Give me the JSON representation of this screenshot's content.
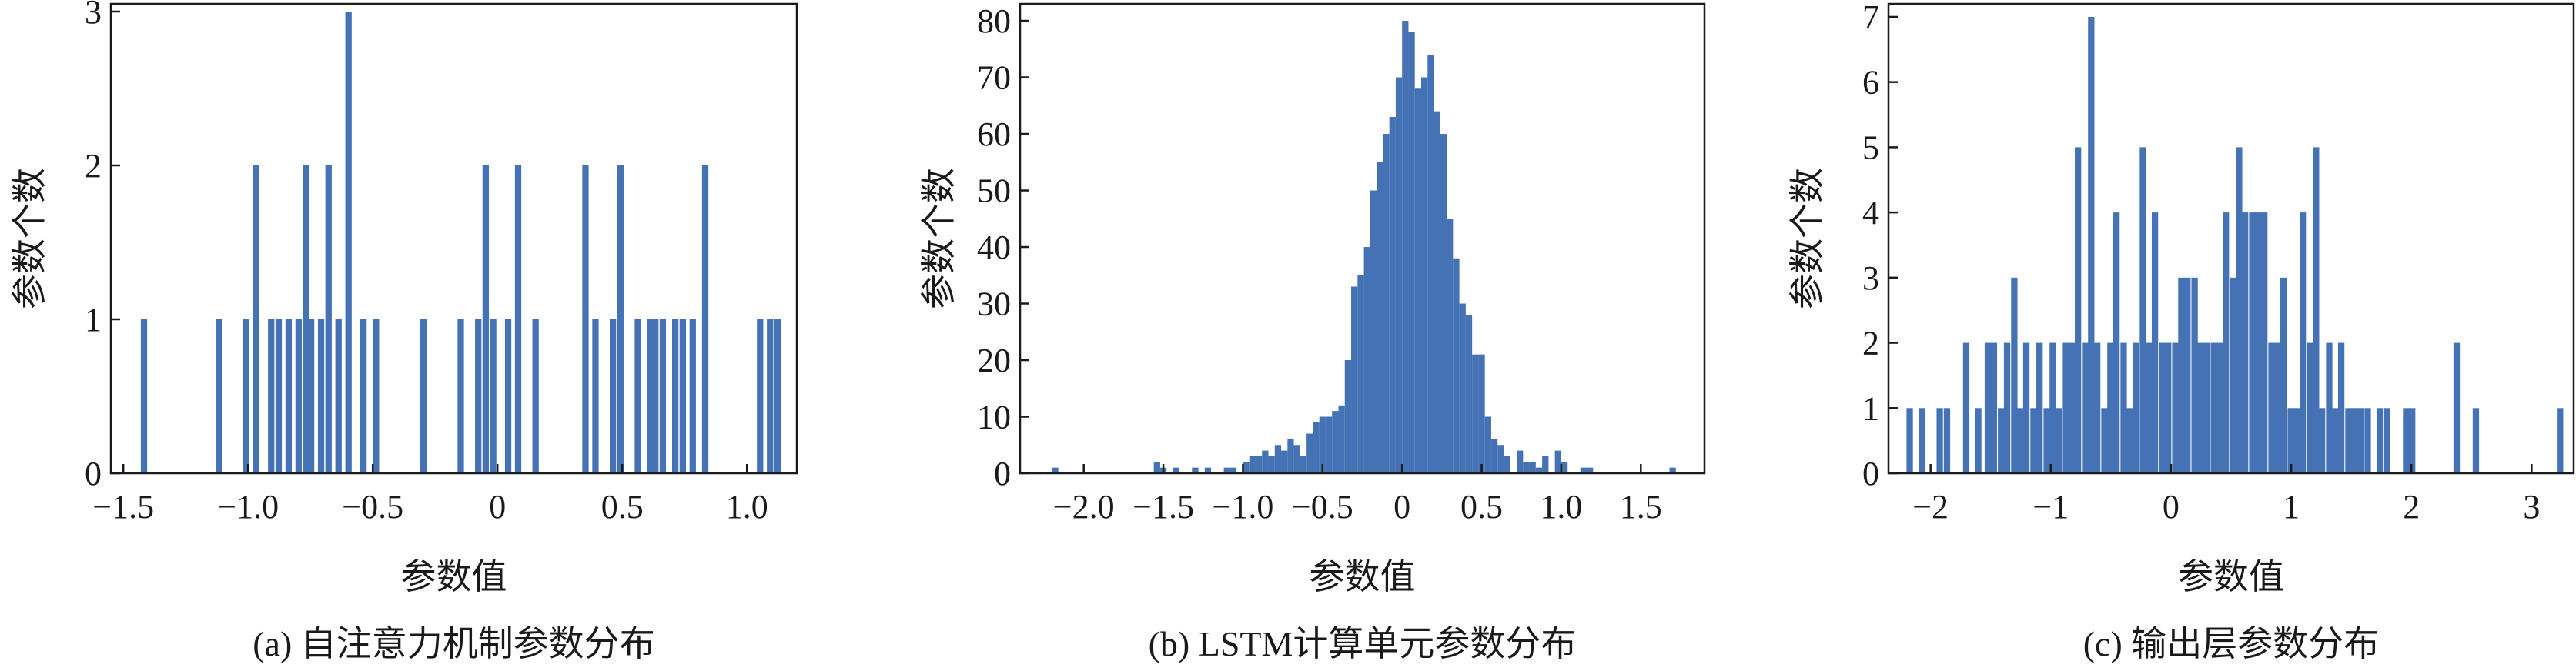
{
  "chart_data": [
    {
      "type": "bar",
      "caption": "(a) 自注意力机制参数分布",
      "xlabel": "参数值",
      "ylabel": "参数个数",
      "xlim": [
        -1.55,
        1.2
      ],
      "ylim": [
        0,
        3.05
      ],
      "xticks": [
        -1.5,
        -1.0,
        -0.5,
        0.0,
        0.5,
        1.0
      ],
      "xtick_labels": [
        "−1.5",
        "−1.0",
        "−0.5",
        "0",
        "0.5",
        "1.0"
      ],
      "yticks": [
        0,
        1,
        2,
        3
      ],
      "ytick_labels": [
        "0",
        "1",
        "2",
        "3"
      ],
      "bin_width": 0.0255,
      "color": "#4472b4",
      "bins": [
        {
          "x": -1.43,
          "count": 1
        },
        {
          "x": -1.13,
          "count": 1
        },
        {
          "x": -1.02,
          "count": 1
        },
        {
          "x": -0.98,
          "count": 2
        },
        {
          "x": -0.92,
          "count": 1
        },
        {
          "x": -0.89,
          "count": 1
        },
        {
          "x": -0.85,
          "count": 1
        },
        {
          "x": -0.81,
          "count": 1
        },
        {
          "x": -0.78,
          "count": 2
        },
        {
          "x": -0.76,
          "count": 1
        },
        {
          "x": -0.72,
          "count": 1
        },
        {
          "x": -0.69,
          "count": 2
        },
        {
          "x": -0.65,
          "count": 1
        },
        {
          "x": -0.61,
          "count": 3
        },
        {
          "x": -0.55,
          "count": 1
        },
        {
          "x": -0.5,
          "count": 1
        },
        {
          "x": -0.31,
          "count": 1
        },
        {
          "x": -0.16,
          "count": 1
        },
        {
          "x": -0.09,
          "count": 1
        },
        {
          "x": -0.06,
          "count": 2
        },
        {
          "x": -0.03,
          "count": 1
        },
        {
          "x": 0.03,
          "count": 1
        },
        {
          "x": 0.07,
          "count": 2
        },
        {
          "x": 0.14,
          "count": 1
        },
        {
          "x": 0.34,
          "count": 2
        },
        {
          "x": 0.38,
          "count": 1
        },
        {
          "x": 0.45,
          "count": 1
        },
        {
          "x": 0.48,
          "count": 2
        },
        {
          "x": 0.55,
          "count": 1
        },
        {
          "x": 0.6,
          "count": 1
        },
        {
          "x": 0.62,
          "count": 1
        },
        {
          "x": 0.65,
          "count": 1
        },
        {
          "x": 0.7,
          "count": 1
        },
        {
          "x": 0.73,
          "count": 1
        },
        {
          "x": 0.77,
          "count": 1
        },
        {
          "x": 0.82,
          "count": 2
        },
        {
          "x": 1.04,
          "count": 1
        },
        {
          "x": 1.08,
          "count": 1
        },
        {
          "x": 1.11,
          "count": 1
        }
      ]
    },
    {
      "type": "bar",
      "caption": "(b) LSTM计算单元参数分布",
      "xlabel": "参数值",
      "ylabel": "参数个数",
      "xlim": [
        -2.4,
        1.9
      ],
      "ylim": [
        0,
        83
      ],
      "xticks": [
        -2.0,
        -1.5,
        -1.0,
        -0.5,
        0.0,
        0.5,
        1.0,
        1.5
      ],
      "xtick_labels": [
        "−2.0",
        "−1.5",
        "−1.0",
        "−0.5",
        "0",
        "0.5",
        "1.0",
        "1.5"
      ],
      "yticks": [
        0,
        10,
        20,
        30,
        40,
        50,
        60,
        70,
        80
      ],
      "ytick_labels": [
        "0",
        "10",
        "20",
        "30",
        "40",
        "50",
        "60",
        "70",
        "80"
      ],
      "bin_width": 0.04,
      "color": "#4472b4",
      "bins": [
        {
          "x": -2.2,
          "count": 1
        },
        {
          "x": -1.56,
          "count": 2
        },
        {
          "x": -1.52,
          "count": 1
        },
        {
          "x": -1.44,
          "count": 1
        },
        {
          "x": -1.32,
          "count": 1
        },
        {
          "x": -1.24,
          "count": 1
        },
        {
          "x": -1.12,
          "count": 1
        },
        {
          "x": -1.08,
          "count": 1
        },
        {
          "x": -1.0,
          "count": 2
        },
        {
          "x": -0.96,
          "count": 3
        },
        {
          "x": -0.92,
          "count": 3
        },
        {
          "x": -0.88,
          "count": 4
        },
        {
          "x": -0.84,
          "count": 3
        },
        {
          "x": -0.8,
          "count": 5
        },
        {
          "x": -0.76,
          "count": 4
        },
        {
          "x": -0.72,
          "count": 6
        },
        {
          "x": -0.68,
          "count": 5
        },
        {
          "x": -0.64,
          "count": 3
        },
        {
          "x": -0.6,
          "count": 7
        },
        {
          "x": -0.56,
          "count": 9
        },
        {
          "x": -0.52,
          "count": 10
        },
        {
          "x": -0.48,
          "count": 10
        },
        {
          "x": -0.44,
          "count": 11
        },
        {
          "x": -0.4,
          "count": 12
        },
        {
          "x": -0.36,
          "count": 20
        },
        {
          "x": -0.32,
          "count": 33
        },
        {
          "x": -0.28,
          "count": 35
        },
        {
          "x": -0.24,
          "count": 40
        },
        {
          "x": -0.2,
          "count": 50
        },
        {
          "x": -0.16,
          "count": 55
        },
        {
          "x": -0.12,
          "count": 60
        },
        {
          "x": -0.08,
          "count": 63
        },
        {
          "x": -0.04,
          "count": 70
        },
        {
          "x": 0.0,
          "count": 80
        },
        {
          "x": 0.04,
          "count": 78
        },
        {
          "x": 0.08,
          "count": 68
        },
        {
          "x": 0.12,
          "count": 70
        },
        {
          "x": 0.16,
          "count": 74
        },
        {
          "x": 0.2,
          "count": 64
        },
        {
          "x": 0.24,
          "count": 60
        },
        {
          "x": 0.28,
          "count": 45
        },
        {
          "x": 0.32,
          "count": 38
        },
        {
          "x": 0.36,
          "count": 30
        },
        {
          "x": 0.4,
          "count": 28
        },
        {
          "x": 0.44,
          "count": 21
        },
        {
          "x": 0.48,
          "count": 21
        },
        {
          "x": 0.52,
          "count": 10
        },
        {
          "x": 0.56,
          "count": 6
        },
        {
          "x": 0.6,
          "count": 5
        },
        {
          "x": 0.64,
          "count": 3
        },
        {
          "x": 0.72,
          "count": 4
        },
        {
          "x": 0.76,
          "count": 2
        },
        {
          "x": 0.8,
          "count": 2
        },
        {
          "x": 0.84,
          "count": 1
        },
        {
          "x": 0.88,
          "count": 3
        },
        {
          "x": 0.96,
          "count": 4
        },
        {
          "x": 1.0,
          "count": 2
        },
        {
          "x": 1.12,
          "count": 1
        },
        {
          "x": 1.16,
          "count": 1
        },
        {
          "x": 1.68,
          "count": 1
        }
      ]
    },
    {
      "type": "bar",
      "caption": "(c) 输出层参数分布",
      "xlabel": "参数值",
      "ylabel": "参数个数",
      "xlim": [
        -2.35,
        3.35
      ],
      "ylim": [
        0,
        7.2
      ],
      "xticks": [
        -2,
        -1,
        0,
        1,
        2,
        3
      ],
      "xtick_labels": [
        "−2",
        "−1",
        "0",
        "1",
        "2",
        "3"
      ],
      "yticks": [
        0,
        1,
        2,
        3,
        4,
        5,
        6,
        7
      ],
      "ytick_labels": [
        "0",
        "1",
        "2",
        "3",
        "4",
        "5",
        "6",
        "7"
      ],
      "bin_width": 0.053,
      "color": "#4472b4",
      "bins": [
        {
          "x": -2.2,
          "count": 1
        },
        {
          "x": -2.1,
          "count": 1
        },
        {
          "x": -1.95,
          "count": 1
        },
        {
          "x": -1.89,
          "count": 1
        },
        {
          "x": -1.73,
          "count": 2
        },
        {
          "x": -1.63,
          "count": 1
        },
        {
          "x": -1.55,
          "count": 2
        },
        {
          "x": -1.5,
          "count": 2
        },
        {
          "x": -1.44,
          "count": 1
        },
        {
          "x": -1.39,
          "count": 2
        },
        {
          "x": -1.33,
          "count": 3
        },
        {
          "x": -1.28,
          "count": 1
        },
        {
          "x": -1.23,
          "count": 2
        },
        {
          "x": -1.17,
          "count": 1
        },
        {
          "x": -1.12,
          "count": 2
        },
        {
          "x": -1.06,
          "count": 1
        },
        {
          "x": -1.01,
          "count": 2
        },
        {
          "x": -0.96,
          "count": 1
        },
        {
          "x": -0.9,
          "count": 2
        },
        {
          "x": -0.85,
          "count": 2
        },
        {
          "x": -0.8,
          "count": 5
        },
        {
          "x": -0.74,
          "count": 2
        },
        {
          "x": -0.69,
          "count": 7
        },
        {
          "x": -0.64,
          "count": 2
        },
        {
          "x": -0.58,
          "count": 1
        },
        {
          "x": -0.53,
          "count": 2
        },
        {
          "x": -0.48,
          "count": 4
        },
        {
          "x": -0.42,
          "count": 2
        },
        {
          "x": -0.37,
          "count": 1
        },
        {
          "x": -0.32,
          "count": 2
        },
        {
          "x": -0.26,
          "count": 5
        },
        {
          "x": -0.21,
          "count": 2
        },
        {
          "x": -0.16,
          "count": 4
        },
        {
          "x": -0.1,
          "count": 2
        },
        {
          "x": -0.05,
          "count": 2
        },
        {
          "x": 0.01,
          "count": 2
        },
        {
          "x": 0.06,
          "count": 3
        },
        {
          "x": 0.11,
          "count": 3
        },
        {
          "x": 0.17,
          "count": 3
        },
        {
          "x": 0.22,
          "count": 2
        },
        {
          "x": 0.27,
          "count": 2
        },
        {
          "x": 0.33,
          "count": 2
        },
        {
          "x": 0.38,
          "count": 2
        },
        {
          "x": 0.43,
          "count": 4
        },
        {
          "x": 0.49,
          "count": 3
        },
        {
          "x": 0.54,
          "count": 5
        },
        {
          "x": 0.59,
          "count": 4
        },
        {
          "x": 0.65,
          "count": 4
        },
        {
          "x": 0.7,
          "count": 4
        },
        {
          "x": 0.75,
          "count": 4
        },
        {
          "x": 0.81,
          "count": 2
        },
        {
          "x": 0.86,
          "count": 2
        },
        {
          "x": 0.91,
          "count": 3
        },
        {
          "x": 0.97,
          "count": 1
        },
        {
          "x": 1.02,
          "count": 1
        },
        {
          "x": 1.07,
          "count": 4
        },
        {
          "x": 1.13,
          "count": 2
        },
        {
          "x": 1.18,
          "count": 5
        },
        {
          "x": 1.23,
          "count": 1
        },
        {
          "x": 1.29,
          "count": 2
        },
        {
          "x": 1.34,
          "count": 1
        },
        {
          "x": 1.39,
          "count": 2
        },
        {
          "x": 1.45,
          "count": 1
        },
        {
          "x": 1.5,
          "count": 1
        },
        {
          "x": 1.55,
          "count": 1
        },
        {
          "x": 1.61,
          "count": 1
        },
        {
          "x": 1.71,
          "count": 1
        },
        {
          "x": 1.77,
          "count": 1
        },
        {
          "x": 1.93,
          "count": 1
        },
        {
          "x": 1.98,
          "count": 1
        },
        {
          "x": 2.35,
          "count": 2
        },
        {
          "x": 2.51,
          "count": 1
        },
        {
          "x": 3.21,
          "count": 1
        }
      ]
    }
  ]
}
